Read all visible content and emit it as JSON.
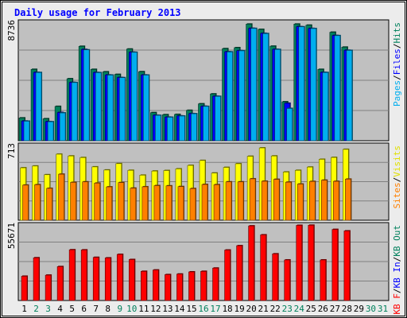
{
  "chart_data": {
    "type": "bar",
    "title": "Daily usage for February 2013",
    "categories": [
      "1",
      "2",
      "3",
      "4",
      "5",
      "6",
      "7",
      "8",
      "9",
      "10",
      "11",
      "12",
      "13",
      "14",
      "15",
      "16",
      "17",
      "18",
      "19",
      "20",
      "21",
      "22",
      "23",
      "24",
      "25",
      "26",
      "27",
      "28",
      "29",
      "30",
      "31"
    ],
    "weekend_days": [
      "2",
      "3",
      "9",
      "10",
      "16",
      "17",
      "23",
      "24",
      "30",
      "31"
    ],
    "panels": [
      {
        "id": "pages-files-hits",
        "max_label": "8736",
        "ymax": 8736,
        "axis_labels": [
          {
            "text": "Pages",
            "color": "#00aeef"
          },
          {
            "text": "Files",
            "color": "#0000ff"
          },
          {
            "text": "Hits",
            "color": "#00805c"
          }
        ],
        "series": [
          {
            "name": "Hits",
            "color": "#00805c",
            "values": [
              1680,
              5260,
              1620,
              2530,
              4570,
              6960,
              5260,
              5080,
              4890,
              6760,
              5090,
              2070,
              1920,
              1940,
              2240,
              2720,
              3450,
              6790,
              6860,
              8600,
              8210,
              6970,
              2870,
              8600,
              8520,
              5260,
              8000,
              6900,
              null,
              null,
              null
            ]
          },
          {
            "name": "Files",
            "color": "#0000ff",
            "values": [
              1450,
              5040,
              1410,
              2080,
              4300,
              6730,
              5030,
              4850,
              4660,
              6530,
              4850,
              1880,
              1740,
              1830,
              2000,
              2540,
              3280,
              6560,
              6640,
              8290,
              7920,
              6740,
              2760,
              8410,
              8280,
              5040,
              7760,
              6670,
              null,
              null,
              null
            ]
          },
          {
            "name": "Pages",
            "color": "#00aeef",
            "values": [
              1440,
              5030,
              1400,
              2050,
              4290,
              6700,
              5020,
              4840,
              4650,
              6520,
              4840,
              1870,
              1730,
              1820,
              1990,
              2530,
              3270,
              6550,
              6630,
              8280,
              7900,
              6730,
              2380,
              8400,
              8270,
              5030,
              7750,
              6660,
              null,
              null,
              null
            ]
          }
        ]
      },
      {
        "id": "visits-sites",
        "max_label": "713",
        "ymax": 713,
        "axis_labels": [
          {
            "text": "Sites",
            "color": "#ff8000"
          },
          {
            "text": "Visits",
            "color": "#e0e000"
          }
        ],
        "series": [
          {
            "name": "Visits",
            "color": "#ffff00",
            "values": [
              500,
              517,
              434,
              630,
              613,
              598,
              509,
              479,
              540,
              476,
              430,
              469,
              474,
              490,
              523,
              570,
              450,
              504,
              539,
              610,
              690,
              613,
              460,
              476,
              507,
              581,
              599,
              676,
              null,
              null,
              null
            ]
          },
          {
            "name": "Sites",
            "color": "#ff8000",
            "values": [
              335,
              339,
              304,
              439,
              361,
              366,
              354,
              318,
              359,
              306,
              319,
              330,
              328,
              321,
              302,
              341,
              339,
              366,
              366,
              395,
              372,
              390,
              363,
              345,
              370,
              382,
              371,
              392,
              null,
              null,
              null
            ]
          }
        ]
      },
      {
        "id": "kbf-kbin-kbout",
        "max_label": "55671",
        "ymax": 55671,
        "axis_labels": [
          {
            "text": "KB F",
            "color": "#ff0000"
          },
          {
            "text": "KB In",
            "color": "#0000ff"
          },
          {
            "text": "KB Out",
            "color": "#00805c"
          }
        ],
        "series": [
          {
            "name": "KB F",
            "color": "#ff0000",
            "values": [
              17900,
              31500,
              18700,
              25000,
              37400,
              37300,
              31800,
              31400,
              34000,
              30200,
              21500,
              22500,
              19100,
              19500,
              21100,
              21500,
              23900,
              37200,
              40400,
              55000,
              48400,
              34400,
              29900,
              55400,
              55500,
              29900,
              52400,
              51300,
              null,
              null,
              null
            ]
          }
        ]
      }
    ]
  }
}
